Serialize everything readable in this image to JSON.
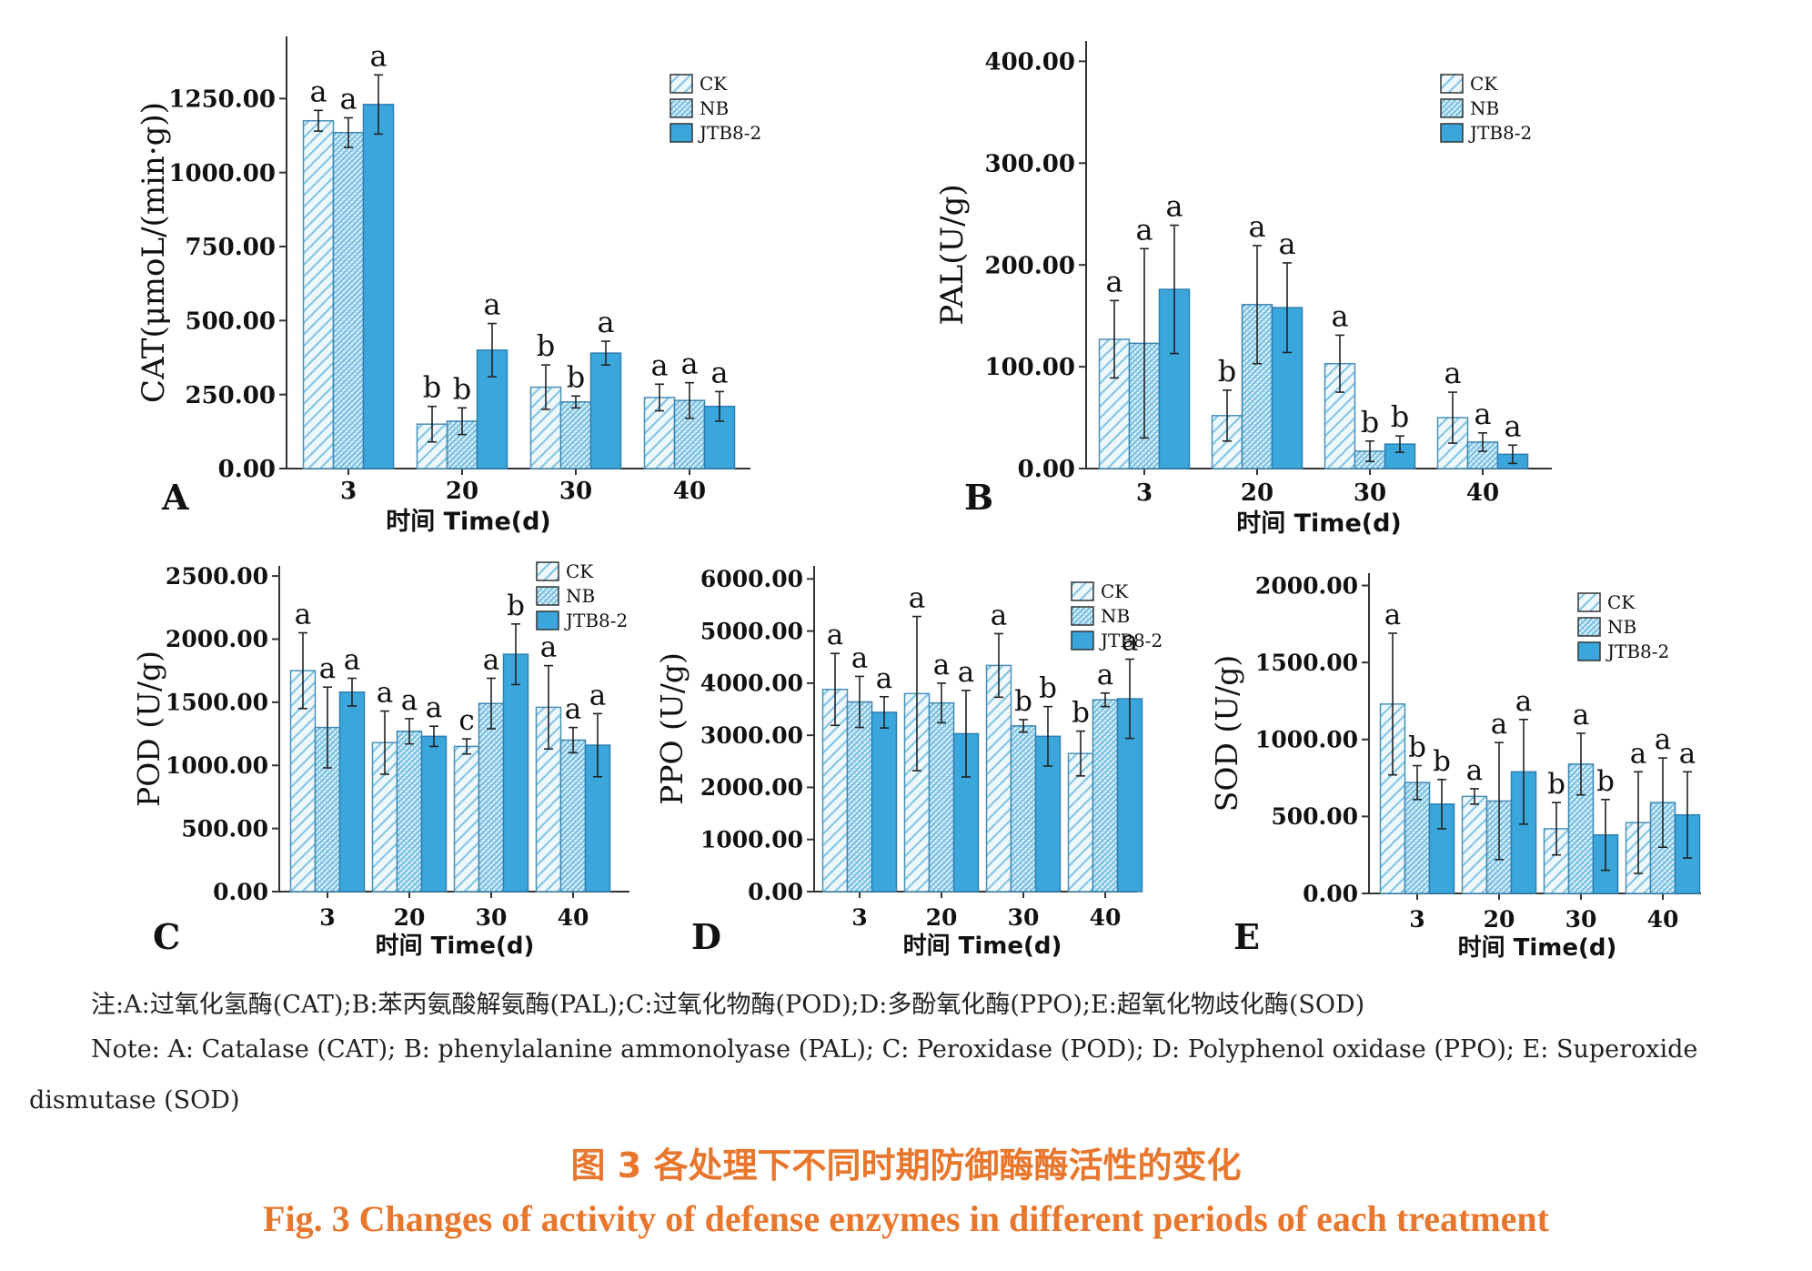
{
  "note_cn": "注:A:过氧化氢酶(CAT);B:苯丙氨酸解氨酶(PAL);C:过氧化物酶(POD);D:多酚氧化酶(PPO);E:超氧化物歧化酶(SOD)",
  "note_en_line1": "Note: A: Catalase (CAT); B: phenylalanine ammonolyase (PAL); C: Peroxidase (POD); D: Polyphenol oxidase (PPO); E: Superoxide",
  "note_en_line2": "dismutase (SOD)",
  "caption_cn": "图 3   各处理下不同时期防御酶酶活性的变化",
  "caption_en": "Fig. 3   Changes of activity of defense enzymes in different periods of each treatment",
  "colors": {
    "ck": "#7ec4e4",
    "nb": "#5fb4de",
    "jtb": "#3aa6dc",
    "caption": "#e8762d"
  },
  "chart_data": [
    {
      "panel": "A",
      "type": "bar",
      "xlabel": "时间 Time(d)",
      "ylabel": "CAT(μmoL/(min·g))",
      "categories": [
        "3",
        "20",
        "30",
        "40"
      ],
      "yticks": [
        "0.00",
        "250.00",
        "500.00",
        "750.00",
        "1000.00",
        "1250.00"
      ],
      "ylim": [
        0,
        1460
      ],
      "legend_position": "top-right",
      "series": [
        {
          "name": "CK",
          "values": [
            1175,
            150,
            275,
            240
          ],
          "errors": [
            35,
            60,
            75,
            45
          ],
          "letters": [
            "a",
            "b",
            "b",
            "a"
          ]
        },
        {
          "name": "NB",
          "values": [
            1135,
            160,
            225,
            230
          ],
          "errors": [
            50,
            45,
            20,
            60
          ],
          "letters": [
            "a",
            "b",
            "b",
            "a"
          ]
        },
        {
          "name": "JTB8-2",
          "values": [
            1230,
            400,
            390,
            210
          ],
          "errors": [
            100,
            90,
            40,
            50
          ],
          "letters": [
            "a",
            "a",
            "a",
            "a"
          ]
        }
      ]
    },
    {
      "panel": "B",
      "type": "bar",
      "xlabel": "时间 Time(d)",
      "ylabel": "PAL(U/g)",
      "categories": [
        "3",
        "20",
        "30",
        "40"
      ],
      "yticks": [
        "0.00",
        "100.00",
        "200.00",
        "300.00",
        "400.00"
      ],
      "ylim": [
        0,
        420
      ],
      "legend_position": "top-right",
      "series": [
        {
          "name": "CK",
          "values": [
            127,
            52,
            103,
            50
          ],
          "errors": [
            38,
            25,
            28,
            25
          ],
          "letters": [
            "a",
            "b",
            "a",
            "a"
          ]
        },
        {
          "name": "NB",
          "values": [
            123,
            161,
            17,
            26
          ],
          "errors": [
            93,
            58,
            10,
            9
          ],
          "letters": [
            "a",
            "a",
            "b",
            "a"
          ]
        },
        {
          "name": "JTB8-2",
          "values": [
            176,
            158,
            24,
            14
          ],
          "errors": [
            63,
            44,
            8,
            9
          ],
          "letters": [
            "a",
            "a",
            "b",
            "a"
          ]
        }
      ]
    },
    {
      "panel": "C",
      "type": "bar",
      "xlabel": "时间 Time(d)",
      "ylabel": "POD (U/g)",
      "categories": [
        "3",
        "20",
        "30",
        "40"
      ],
      "yticks": [
        "0.00",
        "500.00",
        "1000.00",
        "1500.00",
        "2000.00",
        "2500.00"
      ],
      "ylim": [
        0,
        2580
      ],
      "legend_position": "top-right",
      "series": [
        {
          "name": "CK",
          "values": [
            1750,
            1180,
            1150,
            1460
          ],
          "errors": [
            300,
            250,
            60,
            330
          ],
          "letters": [
            "a",
            "a",
            "c",
            "a"
          ]
        },
        {
          "name": "NB",
          "values": [
            1300,
            1270,
            1490,
            1200
          ],
          "errors": [
            320,
            100,
            200,
            100
          ],
          "letters": [
            "a",
            "a",
            "a",
            "a"
          ]
        },
        {
          "name": "JTB8-2",
          "values": [
            1580,
            1230,
            1880,
            1160
          ],
          "errors": [
            110,
            80,
            240,
            250
          ],
          "letters": [
            "a",
            "a",
            "b",
            "a"
          ]
        }
      ]
    },
    {
      "panel": "D",
      "type": "bar",
      "xlabel": "时间 Time(d)",
      "ylabel": "PPO (U/g)",
      "categories": [
        "3",
        "20",
        "30",
        "40"
      ],
      "yticks": [
        "0.00",
        "1000.00",
        "2000.00",
        "3000.00",
        "4000.00",
        "5000.00",
        "6000.00"
      ],
      "ylim": [
        0,
        6250
      ],
      "legend_position": "top-right",
      "series": [
        {
          "name": "CK",
          "values": [
            3880,
            3800,
            4340,
            2650
          ],
          "errors": [
            690,
            1480,
            610,
            430
          ],
          "letters": [
            "a",
            "a",
            "a",
            "b"
          ]
        },
        {
          "name": "NB",
          "values": [
            3640,
            3620,
            3180,
            3680
          ],
          "errors": [
            490,
            380,
            120,
            130
          ],
          "letters": [
            "a",
            "a",
            "b",
            "a"
          ]
        },
        {
          "name": "JTB8-2",
          "values": [
            3440,
            3030,
            2980,
            3700
          ],
          "errors": [
            300,
            830,
            570,
            760
          ],
          "letters": [
            "a",
            "a",
            "b",
            "a"
          ]
        }
      ]
    },
    {
      "panel": "E",
      "type": "bar",
      "xlabel": "时间 Time(d)",
      "ylabel": "SOD (U/g)",
      "categories": [
        "3",
        "20",
        "30",
        "40"
      ],
      "yticks": [
        "0.00",
        "500.00",
        "1000.00",
        "1500.00",
        "2000.00"
      ],
      "ylim": [
        0,
        2080
      ],
      "legend_position": "top-right",
      "series": [
        {
          "name": "CK",
          "values": [
            1230,
            630,
            420,
            460
          ],
          "errors": [
            460,
            50,
            170,
            330
          ],
          "letters": [
            "a",
            "a",
            "b",
            "a"
          ]
        },
        {
          "name": "NB",
          "values": [
            720,
            600,
            840,
            590
          ],
          "errors": [
            110,
            380,
            200,
            290
          ],
          "letters": [
            "b",
            "a",
            "a",
            "a"
          ]
        },
        {
          "name": "JTB8-2",
          "values": [
            580,
            790,
            380,
            510
          ],
          "errors": [
            160,
            340,
            230,
            280
          ],
          "letters": [
            "b",
            "a",
            "b",
            "a"
          ]
        }
      ]
    }
  ]
}
